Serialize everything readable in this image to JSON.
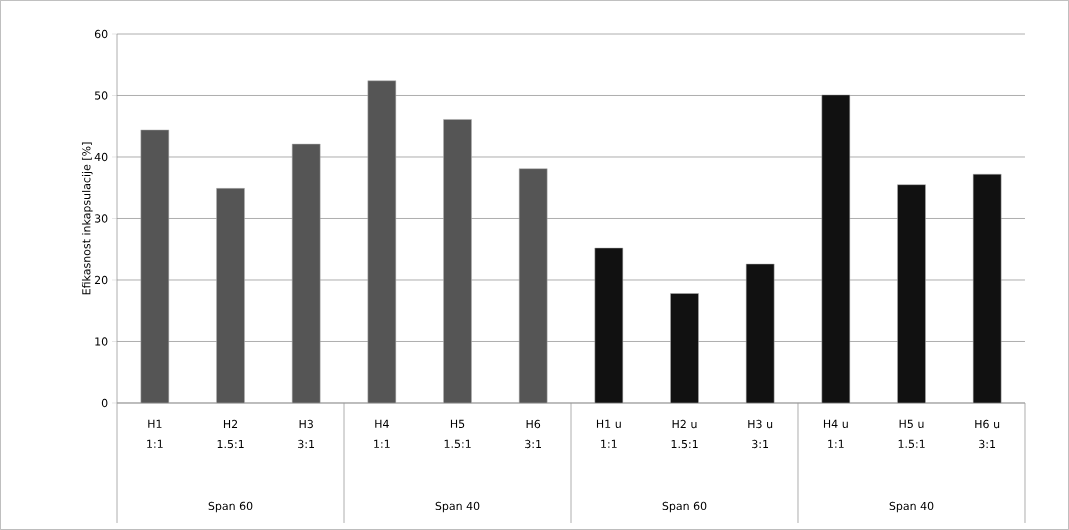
{
  "chart_data": {
    "type": "bar",
    "ylabel": "Efikasnost inkapsulacije [%]",
    "categories": [
      "H1 1:1",
      "H2 1.5:1",
      "H3 3:1",
      "H4 1:1",
      "H5 1.5:1",
      "H6 3:1",
      "H1 u 1:1",
      "H2 u 1.5:1",
      "H3 u 3:1",
      "H4 u 1:1",
      "H5 u 1.5:1",
      "H6 u 3:1"
    ],
    "values": [
      44.4,
      34.9,
      42.1,
      52.4,
      46.1,
      38.1,
      25.2,
      17.8,
      22.6,
      50.1,
      35.5,
      37.2
    ],
    "colors": [
      "#555555",
      "#555555",
      "#555555",
      "#555555",
      "#555555",
      "#555555",
      "#111111",
      "#111111",
      "#111111",
      "#111111",
      "#111111",
      "#111111"
    ],
    "annotations": [
      "Span 60",
      "Span 40",
      "Span 60",
      "Span 40"
    ],
    "ylim": [
      0,
      60
    ],
    "yticks": [
      0,
      10,
      20,
      30,
      40,
      50,
      60
    ],
    "grid": "y"
  }
}
